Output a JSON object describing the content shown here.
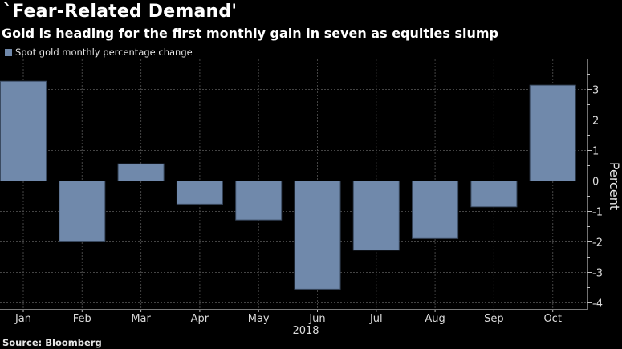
{
  "title": "`Fear-Related Demand'",
  "subtitle": "Gold is heading for the first monthly gain in seven as equities slump",
  "source": "Source: Bloomberg",
  "colors": {
    "bar": "#7089ab",
    "background": "#000000",
    "grid": "#444444",
    "axis": "#bfbfbf"
  },
  "chart_data": {
    "type": "bar",
    "title": "`Fear-Related Demand'",
    "subtitle": "Gold is heading for the first monthly gain in seven as equities slump",
    "categories": [
      "Jan",
      "Feb",
      "Mar",
      "Apr",
      "May",
      "Jun",
      "Jul",
      "Aug",
      "Sep",
      "Oct"
    ],
    "series": [
      {
        "name": "Spot gold monthly percentage change",
        "values": [
          3.27,
          -2.0,
          0.56,
          -0.76,
          -1.28,
          -3.55,
          -2.27,
          -1.89,
          -0.85,
          3.14
        ]
      }
    ],
    "xlabel": "2018",
    "ylabel": "Percent",
    "ylim": [
      -4,
      3.9
    ],
    "yticks": [
      3,
      2,
      1,
      0,
      -1,
      -2,
      -3,
      -4
    ],
    "ytick_labels": [
      "3",
      "2",
      "1",
      "0",
      "-1",
      "-2",
      "-3",
      "-4"
    ],
    "grid": true,
    "legend_position": "top-left",
    "y_axis_side": "right"
  }
}
